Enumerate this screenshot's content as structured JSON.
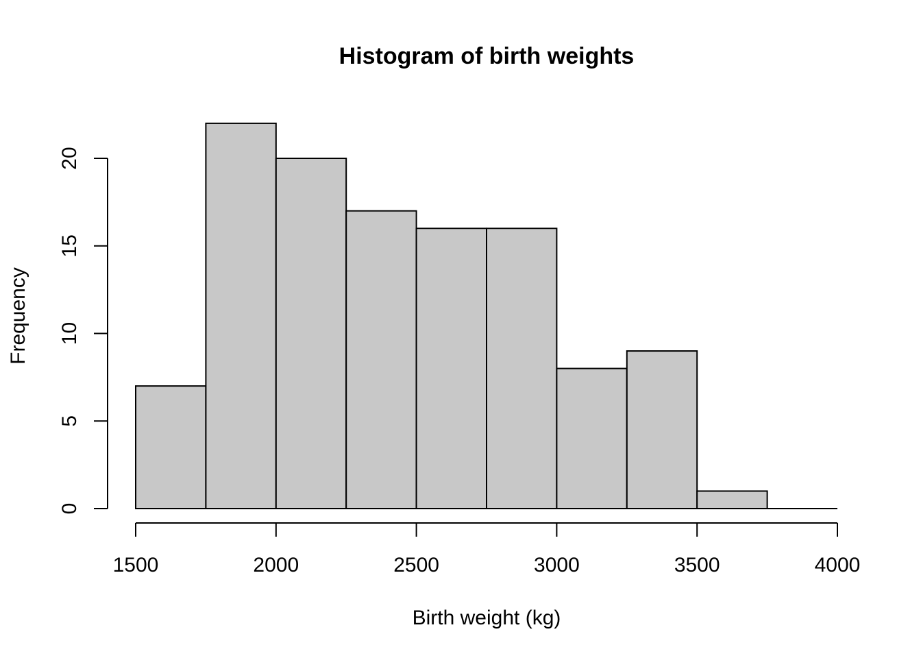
{
  "chart_data": {
    "type": "bar",
    "subtype": "histogram",
    "title": "Histogram of birth weights",
    "xlabel": "Birth weight (kg)",
    "ylabel": "Frequency",
    "bins": [
      {
        "start": 1500,
        "end": 1750,
        "count": 7
      },
      {
        "start": 1750,
        "end": 2000,
        "count": 22
      },
      {
        "start": 2000,
        "end": 2250,
        "count": 20
      },
      {
        "start": 2250,
        "end": 2500,
        "count": 17
      },
      {
        "start": 2500,
        "end": 2750,
        "count": 16
      },
      {
        "start": 2750,
        "end": 3000,
        "count": 16
      },
      {
        "start": 3000,
        "end": 3250,
        "count": 8
      },
      {
        "start": 3250,
        "end": 3500,
        "count": 9
      },
      {
        "start": 3500,
        "end": 3750,
        "count": 1
      },
      {
        "start": 3750,
        "end": 4000,
        "count": 0
      }
    ],
    "xlim": [
      1500,
      4000
    ],
    "ylim": [
      0,
      22
    ],
    "x_ticks": [
      1500,
      2000,
      2500,
      3000,
      3500,
      4000
    ],
    "y_ticks": [
      0,
      5,
      10,
      15,
      20
    ],
    "bar_color": "#c8c8c8",
    "edge_color": "#000000",
    "grid": false,
    "legend": "none"
  }
}
